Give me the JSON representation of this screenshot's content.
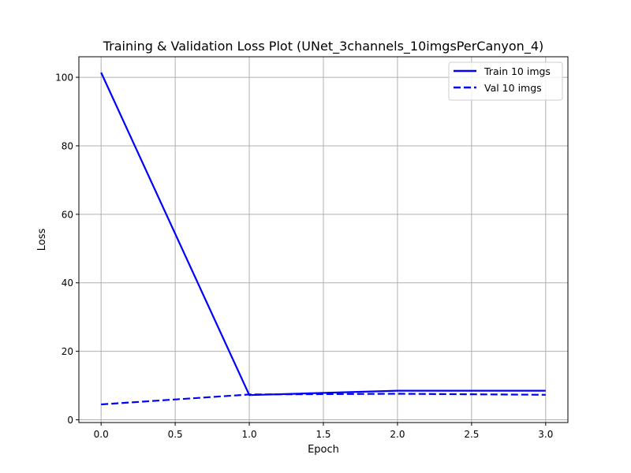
{
  "chart_data": {
    "type": "line",
    "title": "Training & Validation Loss Plot (UNet_3channels_10imgsPerCanyon_4)",
    "xlabel": "Epoch",
    "ylabel": "Loss",
    "xlim": [
      -0.15,
      3.15
    ],
    "ylim": [
      -0.8,
      106
    ],
    "grid": true,
    "legend_position": "top-right",
    "x_ticks": [
      0.0,
      0.5,
      1.0,
      1.5,
      2.0,
      2.5,
      3.0
    ],
    "x_tick_labels": [
      "0.0",
      "0.5",
      "1.0",
      "1.5",
      "2.0",
      "2.5",
      "3.0"
    ],
    "y_ticks": [
      0,
      20,
      40,
      60,
      80,
      100
    ],
    "y_tick_labels": [
      "0",
      "20",
      "40",
      "60",
      "80",
      "100"
    ],
    "series": [
      {
        "name": "Train 10 imgs",
        "x": [
          0,
          1,
          2,
          3
        ],
        "values": [
          101.4,
          7.2,
          8.5,
          8.5
        ],
        "color": "#0000ff",
        "style": "solid"
      },
      {
        "name": "Val 10 imgs",
        "x": [
          0,
          1,
          2,
          3
        ],
        "values": [
          4.5,
          7.4,
          7.6,
          7.3
        ],
        "color": "#0000ff",
        "style": "dashed"
      }
    ]
  }
}
